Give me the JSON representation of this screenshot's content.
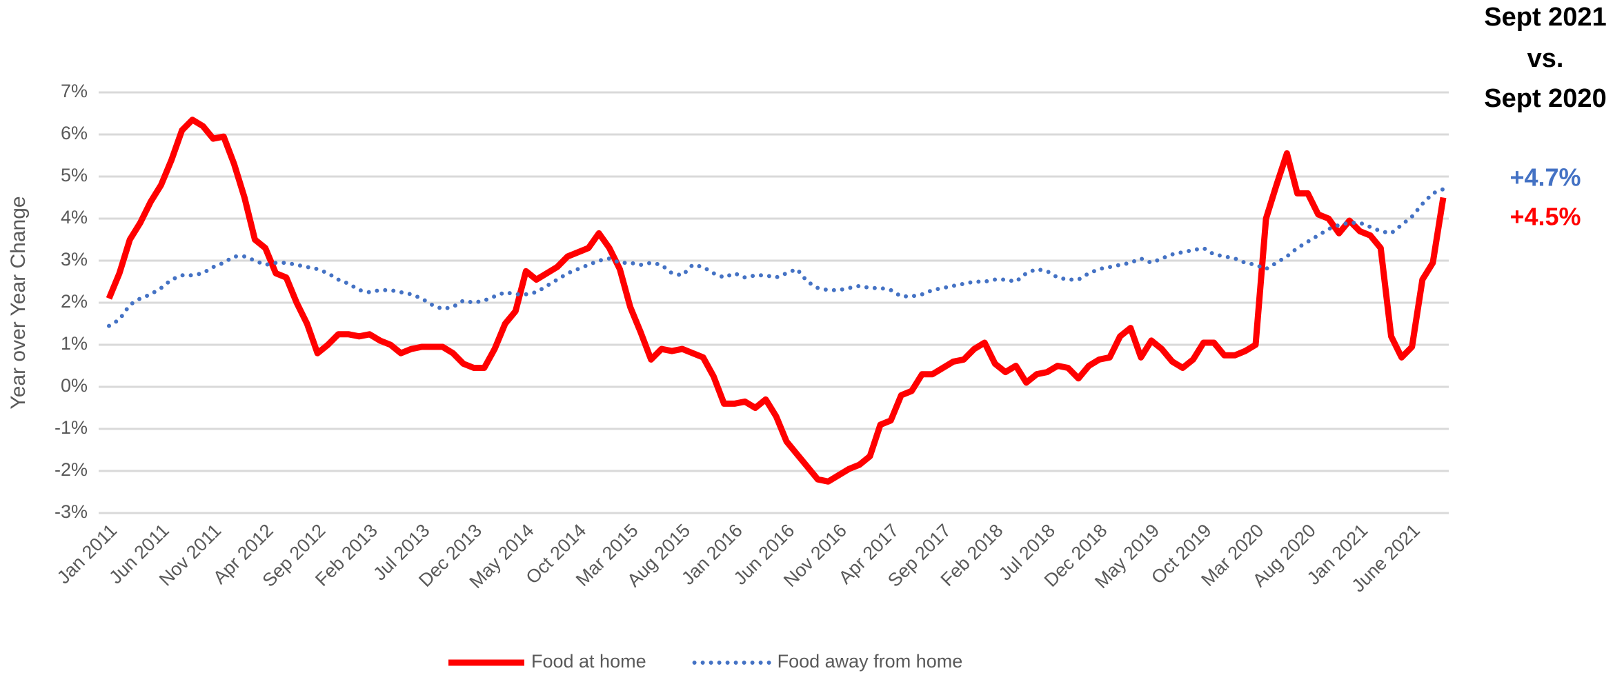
{
  "chart_data": {
    "type": "line",
    "y_label": "Year over Year Change",
    "header": [
      "Sept 2021",
      "vs.",
      "Sept 2020"
    ],
    "annotations": [
      {
        "text": "+4.7%",
        "value": 4.7,
        "color": "#4472c4"
      },
      {
        "text": "+4.5%",
        "value": 4.5,
        "color": "#ff0000"
      }
    ],
    "categories": [
      "Jan 2011",
      null,
      null,
      null,
      null,
      "Jun 2011",
      null,
      null,
      null,
      null,
      "Nov 2011",
      null,
      null,
      null,
      null,
      "Apr 2012",
      null,
      null,
      null,
      null,
      "Sep 2012",
      null,
      null,
      null,
      null,
      "Feb 2013",
      null,
      null,
      null,
      null,
      "Jul 2013",
      null,
      null,
      null,
      null,
      "Dec 2013",
      null,
      null,
      null,
      null,
      "May 2014",
      null,
      null,
      null,
      null,
      "Oct 2014",
      null,
      null,
      null,
      null,
      "Mar 2015",
      null,
      null,
      null,
      null,
      "Aug 2015",
      null,
      null,
      null,
      null,
      "Jan 2016",
      null,
      null,
      null,
      null,
      "Jun 2016",
      null,
      null,
      null,
      null,
      "Nov 2016",
      null,
      null,
      null,
      null,
      "Apr 2017",
      null,
      null,
      null,
      null,
      "Sep 2017",
      null,
      null,
      null,
      null,
      "Feb 2018",
      null,
      null,
      null,
      null,
      "Jul 2018",
      null,
      null,
      null,
      null,
      "Dec 2018",
      null,
      null,
      null,
      null,
      "May 2019",
      null,
      null,
      null,
      null,
      "Oct 2019",
      null,
      null,
      null,
      null,
      "Mar 2020",
      null,
      null,
      null,
      null,
      "Aug 2020",
      null,
      null,
      null,
      null,
      "Jan 2021",
      null,
      null,
      null,
      null,
      "June 2021",
      null,
      null,
      null
    ],
    "series": [
      {
        "name": "Food at home",
        "color": "#ff0000",
        "style": "solid",
        "values": [
          2.1,
          2.7,
          3.5,
          3.9,
          4.4,
          4.8,
          5.4,
          6.1,
          6.35,
          6.2,
          5.9,
          5.95,
          5.3,
          4.5,
          3.5,
          3.3,
          2.7,
          2.6,
          2.0,
          1.5,
          0.8,
          1.0,
          1.25,
          1.25,
          1.2,
          1.25,
          1.1,
          1.0,
          0.8,
          0.9,
          0.95,
          0.95,
          0.95,
          0.8,
          0.55,
          0.45,
          0.45,
          0.9,
          1.5,
          1.8,
          2.75,
          2.55,
          2.7,
          2.85,
          3.1,
          3.2,
          3.3,
          3.65,
          3.3,
          2.8,
          1.9,
          1.3,
          0.65,
          0.9,
          0.85,
          0.9,
          0.8,
          0.7,
          0.25,
          -0.4,
          -0.4,
          -0.35,
          -0.5,
          -0.3,
          -0.7,
          -1.3,
          -1.6,
          -1.9,
          -2.2,
          -2.25,
          -2.1,
          -1.95,
          -1.85,
          -1.65,
          -0.9,
          -0.8,
          -0.2,
          -0.1,
          0.3,
          0.3,
          0.45,
          0.6,
          0.65,
          0.9,
          1.05,
          0.55,
          0.35,
          0.5,
          0.1,
          0.3,
          0.35,
          0.5,
          0.45,
          0.2,
          0.5,
          0.65,
          0.7,
          1.2,
          1.4,
          0.7,
          1.1,
          0.9,
          0.6,
          0.45,
          0.65,
          1.05,
          1.05,
          0.75,
          0.75,
          0.85,
          1.0,
          4.0,
          4.8,
          5.55,
          4.6,
          4.6,
          4.1,
          4.0,
          3.65,
          3.95,
          3.7,
          3.6,
          3.3,
          1.2,
          0.7,
          0.95,
          2.55,
          2.95,
          4.5
        ]
      },
      {
        "name": "Food away from home",
        "color": "#4472c4",
        "style": "dotted",
        "values": [
          1.45,
          1.6,
          1.95,
          2.1,
          2.2,
          2.35,
          2.55,
          2.65,
          2.65,
          2.7,
          2.85,
          2.95,
          3.1,
          3.1,
          3.0,
          2.9,
          2.95,
          2.95,
          2.9,
          2.85,
          2.8,
          2.7,
          2.55,
          2.45,
          2.3,
          2.25,
          2.3,
          2.3,
          2.25,
          2.2,
          2.1,
          1.95,
          1.85,
          1.9,
          2.05,
          2.0,
          2.05,
          2.15,
          2.25,
          2.2,
          2.2,
          2.25,
          2.4,
          2.55,
          2.7,
          2.8,
          2.9,
          3.0,
          3.05,
          2.95,
          2.95,
          2.9,
          2.95,
          2.9,
          2.7,
          2.65,
          2.9,
          2.85,
          2.7,
          2.6,
          2.7,
          2.6,
          2.65,
          2.65,
          2.6,
          2.7,
          2.8,
          2.5,
          2.35,
          2.3,
          2.3,
          2.35,
          2.4,
          2.35,
          2.35,
          2.3,
          2.15,
          2.15,
          2.2,
          2.3,
          2.35,
          2.4,
          2.45,
          2.5,
          2.5,
          2.55,
          2.55,
          2.5,
          2.7,
          2.8,
          2.75,
          2.6,
          2.55,
          2.55,
          2.7,
          2.8,
          2.85,
          2.9,
          2.95,
          3.05,
          2.95,
          3.05,
          3.15,
          3.2,
          3.25,
          3.3,
          3.15,
          3.1,
          3.05,
          2.95,
          2.9,
          2.8,
          2.95,
          3.1,
          3.3,
          3.45,
          3.6,
          3.75,
          3.85,
          3.9,
          3.9,
          3.8,
          3.7,
          3.65,
          3.85,
          4.05,
          4.35,
          4.6,
          4.7
        ]
      }
    ],
    "ylim": [
      -3,
      7
    ],
    "yticks": [
      {
        "value": -3,
        "label": "-3%"
      },
      {
        "value": -2,
        "label": "-2%"
      },
      {
        "value": -1,
        "label": "-1%"
      },
      {
        "value": 0,
        "label": "0%"
      },
      {
        "value": 1,
        "label": "1%"
      },
      {
        "value": 2,
        "label": "2%"
      },
      {
        "value": 3,
        "label": "3%"
      },
      {
        "value": 4,
        "label": "4%"
      },
      {
        "value": 5,
        "label": "5%"
      },
      {
        "value": 6,
        "label": "6%"
      },
      {
        "value": 7,
        "label": "7%"
      }
    ],
    "grid": true,
    "legend": "bottom"
  }
}
